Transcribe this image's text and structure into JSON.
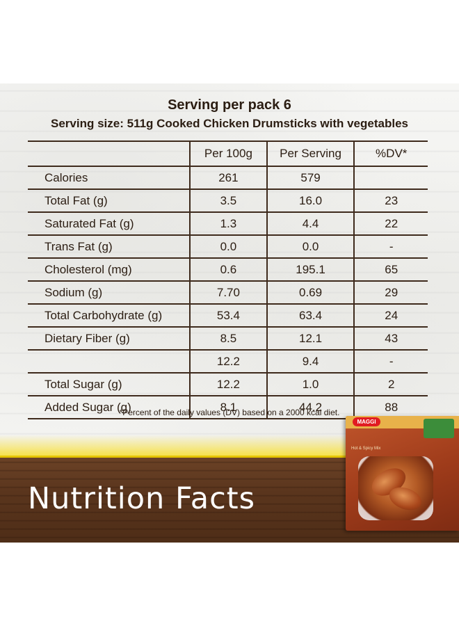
{
  "header": {
    "servings": "Serving per pack 6",
    "serving_size": "Serving size: 511g Cooked Chicken Drumsticks with vegetables"
  },
  "table": {
    "columns": [
      "",
      "Per 100g",
      "Per Serving",
      "%DV*"
    ],
    "rows": [
      {
        "name": "Calories",
        "per100": "261",
        "perServing": "579",
        "dv": ""
      },
      {
        "name": "Total Fat (g)",
        "per100": "3.5",
        "perServing": "16.0",
        "dv": "23"
      },
      {
        "name": "Saturated Fat (g)",
        "per100": "1.3",
        "perServing": "4.4",
        "dv": "22"
      },
      {
        "name": "Trans Fat (g)",
        "per100": "0.0",
        "perServing": "0.0",
        "dv": "-"
      },
      {
        "name": "Cholesterol (mg)",
        "per100": "0.6",
        "perServing": "195.1",
        "dv": "65"
      },
      {
        "name": "Sodium (g)",
        "per100": "7.70",
        "perServing": "0.69",
        "dv": "29"
      },
      {
        "name": "Total Carbohydrate (g)",
        "per100": "53.4",
        "perServing": "63.4",
        "dv": "24"
      },
      {
        "name": "Dietary Fiber (g)",
        "per100": "8.5",
        "perServing": "12.1",
        "dv": "43"
      },
      {
        "name": "",
        "per100": "12.2",
        "perServing": "9.4",
        "dv": "-"
      },
      {
        "name": "Total Sugar (g)",
        "per100": "12.2",
        "perServing": "1.0",
        "dv": "2"
      },
      {
        "name": "Added Sugar (g)",
        "per100": "8.1",
        "perServing": "44.2",
        "dv": "88"
      }
    ]
  },
  "footnote": "*Percent of the daily values (DV) based on a 2000 kcal diet.",
  "banner_title": "Nutrition Facts",
  "product": {
    "brand": "MAGGI",
    "variant": "Hot & Spicy Mix"
  }
}
